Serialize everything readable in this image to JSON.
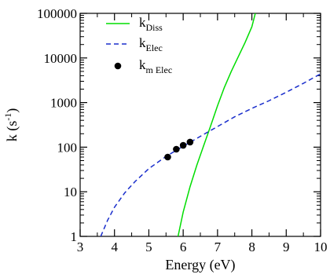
{
  "chart_data": {
    "type": "line",
    "title": "",
    "xlabel": "Energy (eV)",
    "ylabel": {
      "main": "k (s",
      "sup": "-1",
      "close": ")"
    },
    "xlim": [
      3,
      10
    ],
    "ylim": [
      1,
      100000
    ],
    "yscale": "log",
    "grid": false,
    "legend_position": "top-left",
    "x_ticks": [
      "3",
      "4",
      "5",
      "6",
      "7",
      "8",
      "9",
      "10"
    ],
    "y_ticks": [
      "1",
      "10",
      "100",
      "1000",
      "10000",
      "100000"
    ],
    "series": [
      {
        "name": {
          "base": "k",
          "sub": "Diss"
        },
        "style": "solid-line",
        "color": "#00dd00",
        "x": [
          5.85,
          6.0,
          6.2,
          6.4,
          6.6,
          6.8,
          7.0,
          7.2,
          7.4,
          7.6,
          7.8,
          8.0,
          8.1
        ],
        "y": [
          1,
          3.5,
          13,
          40,
          110,
          300,
          850,
          2200,
          5000,
          10500,
          22000,
          50000,
          100000
        ]
      },
      {
        "name": {
          "base": "k",
          "sub": "Elec"
        },
        "style": "dashed-line",
        "color": "#1a2ecc",
        "x": [
          3.6,
          3.8,
          4.0,
          4.3,
          4.6,
          5.0,
          5.5,
          6.0,
          6.5,
          7.0,
          7.5,
          8.0,
          8.5,
          9.0,
          9.5,
          10.0
        ],
        "y": [
          1,
          2.3,
          4.5,
          9.5,
          17,
          33,
          62,
          105,
          175,
          290,
          480,
          740,
          1100,
          1700,
          2700,
          4400
        ]
      },
      {
        "name": {
          "base": "k",
          "sub": "m Elec"
        },
        "style": "markers",
        "color": "#000000",
        "x": [
          5.55,
          5.8,
          6.0,
          6.2
        ],
        "y": [
          60,
          90,
          110,
          130
        ]
      }
    ]
  }
}
